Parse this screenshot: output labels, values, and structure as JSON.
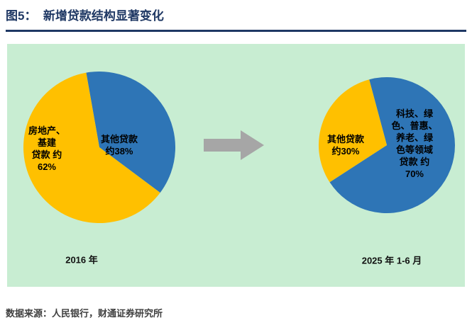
{
  "figure": {
    "title": "图5：  新增贷款结构显著变化",
    "source": "数据来源：人民银行，财通证券研究所"
  },
  "colors": {
    "title": "#1F3864",
    "panel_bg": "#C8EDD2",
    "arrow": "#A6A6A6",
    "source_text": "#3F3F3F",
    "pie_blue": "#2E75B6",
    "pie_yellow": "#FFC000"
  },
  "chart_data": [
    {
      "type": "pie",
      "caption": "2016 年",
      "start_angle": -10,
      "legend_position": "none",
      "slices": [
        {
          "name": "其他贷款",
          "label": "其他贷款\n约38%",
          "value": 38,
          "color": "#2E75B6"
        },
        {
          "name": "房地产、基建贷款",
          "label": "房地产、\n基建\n贷款 约\n62%",
          "value": 62,
          "color": "#FFC000"
        }
      ]
    },
    {
      "type": "pie",
      "caption": "2025 年 1-6 月",
      "start_angle": -15,
      "legend_position": "none",
      "slices": [
        {
          "name": "科技、绿色、普惠、养老、绿色等领域贷款",
          "label": "科技、绿\n色、普惠、\n养老、绿\n色等领域\n贷款 约\n70%",
          "value": 70,
          "color": "#2E75B6"
        },
        {
          "name": "其他贷款",
          "label": "其他贷款\n约30%",
          "value": 30,
          "color": "#FFC000"
        }
      ]
    }
  ]
}
